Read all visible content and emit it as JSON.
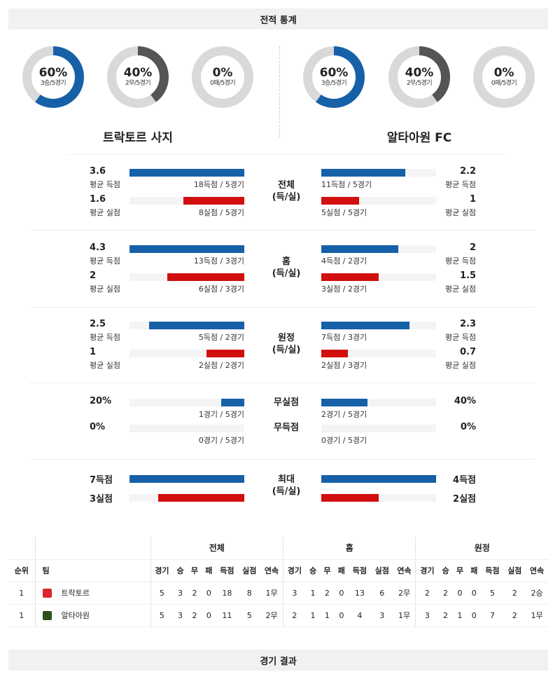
{
  "header": {
    "title": "전적 통계"
  },
  "footer": {
    "title": "경기 결과"
  },
  "colors": {
    "blue": "#1660a8",
    "red": "#d20f0f",
    "dark": "#555555",
    "track": "#d9d9d9"
  },
  "teams": {
    "home": {
      "name": "트락토르 사지",
      "donuts": [
        {
          "pct": "60%",
          "sub": "3승/5경기",
          "value": 0.6,
          "color": "#1660a8"
        },
        {
          "pct": "40%",
          "sub": "2무/5경기",
          "value": 0.4,
          "color": "#555555"
        },
        {
          "pct": "0%",
          "sub": "0패/5경기",
          "value": 0,
          "color": "#555555"
        }
      ]
    },
    "away": {
      "name": "알타아원 FC",
      "donuts": [
        {
          "pct": "60%",
          "sub": "3승/5경기",
          "value": 0.6,
          "color": "#1660a8"
        },
        {
          "pct": "40%",
          "sub": "2무/5경기",
          "value": 0.4,
          "color": "#555555"
        },
        {
          "pct": "0%",
          "sub": "0패/5경기",
          "value": 0,
          "color": "#555555"
        }
      ]
    }
  },
  "sections": [
    {
      "label": "전체\n(득/실)",
      "rows": [
        {
          "left_val": "3.6",
          "left_label": "평균 득점",
          "left_note": "18득점 / 5경기",
          "left_fill": 1.0,
          "right_val": "2.2",
          "right_label": "평균 득점",
          "right_note": "11득점 / 5경기",
          "right_fill": 0.73,
          "color": "blue"
        },
        {
          "left_val": "1.6",
          "left_label": "평균 실점",
          "left_note": "8실점 / 5경기",
          "left_fill": 0.53,
          "right_val": "1",
          "right_label": "평균 실점",
          "right_note": "5실점 / 5경기",
          "right_fill": 0.33,
          "color": "red"
        }
      ]
    },
    {
      "label": "홈\n(득/실)",
      "rows": [
        {
          "left_val": "4.3",
          "left_label": "평균 득점",
          "left_note": "13득점 / 3경기",
          "left_fill": 1.0,
          "right_val": "2",
          "right_label": "평균 득점",
          "right_note": "4득점 / 2경기",
          "right_fill": 0.67,
          "color": "blue"
        },
        {
          "left_val": "2",
          "left_label": "평균 실점",
          "left_note": "6실점 / 3경기",
          "left_fill": 0.67,
          "right_val": "1.5",
          "right_label": "평균 실점",
          "right_note": "3실점 / 2경기",
          "right_fill": 0.5,
          "color": "red"
        }
      ]
    },
    {
      "label": "원정\n(득/실)",
      "rows": [
        {
          "left_val": "2.5",
          "left_label": "평균 득점",
          "left_note": "5득점 / 2경기",
          "left_fill": 0.83,
          "right_val": "2.3",
          "right_label": "평균 득점",
          "right_note": "7득점 / 3경기",
          "right_fill": 0.77,
          "color": "blue"
        },
        {
          "left_val": "1",
          "left_label": "평균 실점",
          "left_note": "2실점 / 2경기",
          "left_fill": 0.33,
          "right_val": "0.7",
          "right_label": "평균 실점",
          "right_note": "2실점 / 3경기",
          "right_fill": 0.23,
          "color": "red"
        }
      ]
    },
    {
      "label_rows": [
        "무실점",
        "무득점"
      ],
      "rows": [
        {
          "left_val": "20%",
          "left_label": "",
          "left_note": "1경기 / 5경기",
          "left_fill": 0.2,
          "right_val": "40%",
          "right_label": "",
          "right_note": "2경기 / 5경기",
          "right_fill": 0.4,
          "color": "blue"
        },
        {
          "left_val": "0%",
          "left_label": "",
          "left_note": "0경기 / 5경기",
          "left_fill": 0,
          "right_val": "0%",
          "right_label": "",
          "right_note": "0경기 / 5경기",
          "right_fill": 0,
          "color": "blue"
        }
      ]
    },
    {
      "label": "최대\n(득/실)",
      "rows": [
        {
          "left_val": "7득점",
          "left_label": "",
          "left_note": "",
          "left_fill": 1.0,
          "right_val": "4득점",
          "right_label": "",
          "right_note": "",
          "right_fill": 1.0,
          "color": "blue"
        },
        {
          "left_val": "3실점",
          "left_label": "",
          "left_note": "",
          "left_fill": 0.75,
          "right_val": "2실점",
          "right_label": "",
          "right_note": "",
          "right_fill": 0.5,
          "color": "red"
        }
      ]
    }
  ],
  "standings": {
    "groups": [
      "전체",
      "홈",
      "원정"
    ],
    "rank_header": "순위",
    "team_header": "팀",
    "sub_headers": [
      "경기",
      "승",
      "무",
      "패",
      "득점",
      "실점",
      "연속"
    ],
    "rows": [
      {
        "rank": "1",
        "team": "트락토르",
        "logo_color": "#d8262b",
        "all": [
          "5",
          "3",
          "2",
          "0",
          "18",
          "8",
          "1무"
        ],
        "home": [
          "3",
          "1",
          "2",
          "0",
          "13",
          "6",
          "2무"
        ],
        "away": [
          "2",
          "2",
          "0",
          "0",
          "5",
          "2",
          "2승"
        ]
      },
      {
        "rank": "1",
        "team": "알타아원",
        "logo_color": "#2f4f1f",
        "all": [
          "5",
          "3",
          "2",
          "0",
          "11",
          "5",
          "2무"
        ],
        "home": [
          "2",
          "1",
          "1",
          "0",
          "4",
          "3",
          "1무"
        ],
        "away": [
          "3",
          "2",
          "1",
          "0",
          "7",
          "2",
          "1무"
        ]
      }
    ]
  }
}
